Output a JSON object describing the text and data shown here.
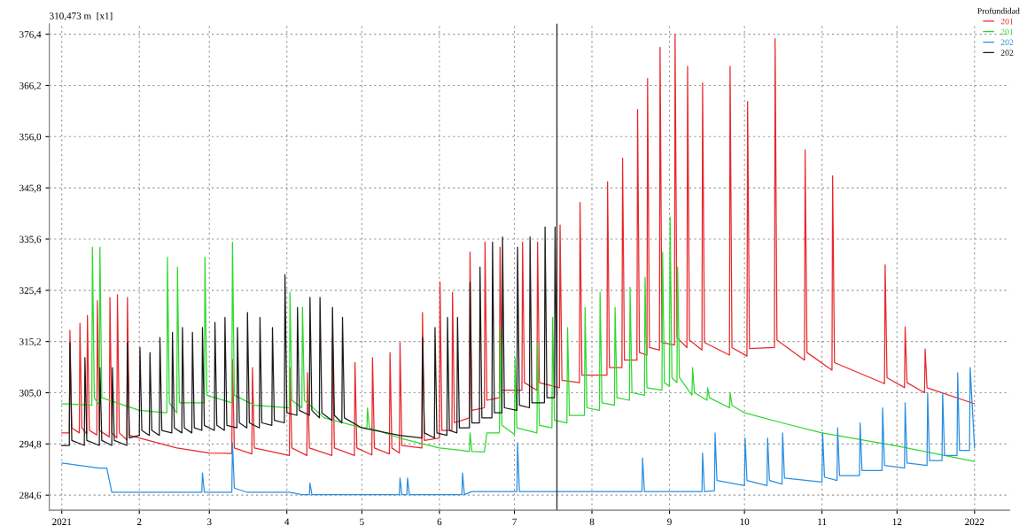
{
  "chart_data": {
    "type": "line",
    "ylabel": "310,473 m  [x1]",
    "legend_title": "Profundidad",
    "legend": "top right",
    "grid": true,
    "line_style": "solid",
    "marker": "none",
    "xlim": [
      "2020-12-27",
      "2022-01-15"
    ],
    "ylim": [
      281.6,
      378.5
    ],
    "xticks": [
      {
        "value": "2021-01-01",
        "label": "2021"
      },
      {
        "value": "2021-02-01",
        "label": "2"
      },
      {
        "value": "2021-03-01",
        "label": "3"
      },
      {
        "value": "2021-04-01",
        "label": "4"
      },
      {
        "value": "2021-05-01",
        "label": "5"
      },
      {
        "value": "2021-06-01",
        "label": "6"
      },
      {
        "value": "2021-07-01",
        "label": "7"
      },
      {
        "value": "2021-08-01",
        "label": "8"
      },
      {
        "value": "2021-09-01",
        "label": "9"
      },
      {
        "value": "2021-10-01",
        "label": "10"
      },
      {
        "value": "2021-11-01",
        "label": "11"
      },
      {
        "value": "2021-12-01",
        "label": "12"
      },
      {
        "value": "2022-01-01",
        "label": "2022"
      }
    ],
    "yticks": [
      {
        "value": 284.6,
        "label": "284,6"
      },
      {
        "value": 294.8,
        "label": "294,8"
      },
      {
        "value": 305.0,
        "label": "305,0"
      },
      {
        "value": 315.2,
        "label": "315,2"
      },
      {
        "value": 325.4,
        "label": "325,4"
      },
      {
        "value": 335.6,
        "label": "335,6"
      },
      {
        "value": 345.8,
        "label": "345,8"
      },
      {
        "value": 356.0,
        "label": "356,0"
      },
      {
        "value": 366.2,
        "label": "366,2"
      },
      {
        "value": 376.4,
        "label": "376,4"
      }
    ],
    "ref_lines": [
      {
        "axis": "x",
        "value": "2021-07-18",
        "color": "#333333"
      }
    ],
    "series": [
      {
        "name": "201",
        "color": "#e8282c",
        "x": [
          "2021-01-01",
          "2021-01-04",
          "2021-01-04T06:00",
          "2021-01-05",
          "2021-01-08",
          "2021-01-08T06:00",
          "2021-01-09",
          "2021-01-11",
          "2021-01-11T06:00",
          "2021-01-12",
          "2021-01-15",
          "2021-01-15T06:00",
          "2021-01-16",
          "2021-01-20",
          "2021-01-20T06:00",
          "2021-01-21",
          "2021-01-23",
          "2021-01-23T06:00",
          "2021-01-24",
          "2021-01-27",
          "2021-01-27T06:00",
          "2021-01-28",
          "2021-02-16",
          "2021-03-01",
          "2021-03-10",
          "2021-03-10T06:00",
          "2021-03-11",
          "2021-03-18",
          "2021-03-18T06:00",
          "2021-03-19",
          "2021-04-02",
          "2021-04-02T06:00",
          "2021-04-03",
          "2021-04-09",
          "2021-04-09T06:00",
          "2021-04-10",
          "2021-04-19",
          "2021-04-19T06:00",
          "2021-04-20",
          "2021-04-28",
          "2021-04-28T06:00",
          "2021-04-29",
          "2021-05-05",
          "2021-05-05T06:00",
          "2021-05-06",
          "2021-05-12",
          "2021-05-12T06:00",
          "2021-05-13",
          "2021-05-16",
          "2021-05-16T06:00",
          "2021-05-17",
          "2021-05-25",
          "2021-05-25T06:00",
          "2021-05-26",
          "2021-06-01",
          "2021-06-01T06:00",
          "2021-06-02",
          "2021-06-06",
          "2021-06-06T06:00",
          "2021-06-07",
          "2021-06-13",
          "2021-06-13T06:00",
          "2021-06-14",
          "2021-06-19",
          "2021-06-19T06:00",
          "2021-06-20",
          "2021-06-25",
          "2021-06-25T06:00",
          "2021-06-26",
          "2021-07-04",
          "2021-07-04T06:00",
          "2021-07-05",
          "2021-07-10",
          "2021-07-10T06:00",
          "2021-07-11",
          "2021-07-19",
          "2021-07-19T06:00",
          "2021-07-20",
          "2021-07-27",
          "2021-07-27T06:00",
          "2021-07-28",
          "2021-08-07",
          "2021-08-07T06:00",
          "2021-08-08",
          "2021-08-13",
          "2021-08-13T06:00",
          "2021-08-14",
          "2021-08-19",
          "2021-08-19T06:00",
          "2021-08-20",
          "2021-08-23",
          "2021-08-23T06:00",
          "2021-08-24",
          "2021-08-28",
          "2021-08-28T06:00",
          "2021-08-29",
          "2021-09-03",
          "2021-09-03T06:00",
          "2021-09-04",
          "2021-09-08",
          "2021-09-08T06:00",
          "2021-09-09",
          "2021-09-14",
          "2021-09-14T06:00",
          "2021-09-15",
          "2021-09-25",
          "2021-09-25T06:00",
          "2021-09-26",
          "2021-10-02",
          "2021-10-02T06:00",
          "2021-10-03",
          "2021-10-13",
          "2021-10-13T06:00",
          "2021-10-14",
          "2021-10-25",
          "2021-10-25T06:00",
          "2021-10-26",
          "2021-11-05",
          "2021-11-05T06:00",
          "2021-11-06",
          "2021-11-26",
          "2021-11-26T06:00",
          "2021-11-27",
          "2021-12-04",
          "2021-12-04T06:00",
          "2021-12-05",
          "2021-12-12",
          "2021-12-12T06:00",
          "2021-12-13",
          "2022-01-01"
        ],
        "values": [
          297,
          297,
          317.4,
          298,
          297,
          318.8,
          298,
          296.8,
          320.4,
          297.5,
          296.6,
          323.3,
          297.5,
          296.2,
          324,
          297,
          296,
          324.5,
          297,
          295.6,
          324,
          296.5,
          294,
          293,
          292.9,
          311.6,
          294,
          292.8,
          310,
          294,
          292.5,
          310,
          294,
          292.5,
          309,
          294,
          292.5,
          316,
          294,
          292.5,
          311,
          294,
          292.6,
          312,
          294,
          292.8,
          313,
          294,
          293,
          315,
          294.5,
          294,
          321,
          295.5,
          296,
          327,
          297.5,
          297.5,
          325,
          299,
          300,
          333,
          301.5,
          302,
          335,
          303.5,
          304,
          334,
          305.5,
          305.5,
          335,
          307,
          305.5,
          335,
          307,
          306,
          338.4,
          307.5,
          307,
          342.9,
          308.5,
          308.5,
          347,
          310,
          310,
          351.7,
          311.5,
          311.5,
          361.4,
          313,
          312.5,
          367.6,
          314,
          313.5,
          373.8,
          315,
          314.5,
          376.4,
          316,
          314,
          370,
          315.5,
          313.5,
          366.7,
          315,
          312.5,
          370,
          314,
          312.3,
          363,
          313.8,
          314,
          375.5,
          315.5,
          311.5,
          353.4,
          313,
          309.5,
          348.2,
          311,
          306.8,
          330.5,
          308,
          306,
          318.1,
          307,
          305,
          313.7,
          306,
          302.8
        ]
      },
      {
        "name": "201",
        "color": "#2fd82f",
        "x": [
          "2021-01-01",
          "2021-01-13",
          "2021-01-13T06:00",
          "2021-01-14",
          "2021-01-16",
          "2021-01-16T06:00",
          "2021-01-17",
          "2021-02-01",
          "2021-02-12",
          "2021-02-12T06:00",
          "2021-02-13",
          "2021-02-16",
          "2021-02-16T06:00",
          "2021-02-17",
          "2021-02-27",
          "2021-02-27T06:00",
          "2021-02-28",
          "2021-03-10",
          "2021-03-10T06:00",
          "2021-03-11",
          "2021-03-19",
          "2021-04-02",
          "2021-04-02T06:00",
          "2021-04-03",
          "2021-04-07",
          "2021-04-07T06:00",
          "2021-04-08",
          "2021-04-16",
          "2021-05-01",
          "2021-05-03",
          "2021-05-03T06:00",
          "2021-05-04",
          "2021-05-16",
          "2021-06-01",
          "2021-06-10",
          "2021-06-13",
          "2021-06-13T06:00",
          "2021-06-14",
          "2021-06-19",
          "2021-06-20",
          "2021-06-25",
          "2021-06-25T06:00",
          "2021-06-26",
          "2021-07-01",
          "2021-07-01T06:00",
          "2021-07-02",
          "2021-07-10",
          "2021-07-10T06:00",
          "2021-07-11",
          "2021-07-16",
          "2021-07-16T06:00",
          "2021-07-17",
          "2021-07-22",
          "2021-07-22T06:00",
          "2021-07-23",
          "2021-07-29",
          "2021-07-29T06:00",
          "2021-07-30",
          "2021-08-04",
          "2021-08-04T06:00",
          "2021-08-05",
          "2021-08-10",
          "2021-08-10T06:00",
          "2021-08-11",
          "2021-08-16",
          "2021-08-16T06:00",
          "2021-08-17",
          "2021-08-22",
          "2021-08-22T06:00",
          "2021-08-23",
          "2021-08-29",
          "2021-08-29T06:00",
          "2021-08-30",
          "2021-09-01",
          "2021-09-01T06:00",
          "2021-09-02",
          "2021-09-04",
          "2021-09-04T06:00",
          "2021-09-05",
          "2021-09-10",
          "2021-09-10T06:00",
          "2021-09-11",
          "2021-09-16",
          "2021-09-16T06:00",
          "2021-09-17",
          "2021-09-25",
          "2021-09-25T06:00",
          "2021-09-26",
          "2021-10-01",
          "2021-10-16",
          "2021-11-01",
          "2021-12-01",
          "2022-01-01"
        ],
        "values": [
          302.8,
          302.5,
          334,
          304,
          302.5,
          334,
          304,
          301.5,
          301,
          332,
          303,
          301,
          330,
          303,
          303,
          332,
          304.5,
          303,
          335,
          304.5,
          302.5,
          302,
          325,
          303.5,
          302,
          322,
          303.5,
          300,
          298,
          298,
          302,
          298,
          296,
          294,
          293.5,
          293.3,
          297,
          293.3,
          293.2,
          297,
          297,
          318,
          298.5,
          296.7,
          312,
          298,
          297,
          315,
          298.5,
          298,
          320,
          299.5,
          299,
          318,
          300.5,
          300.5,
          322,
          302,
          301.5,
          325,
          303,
          302.5,
          322,
          304,
          303.5,
          326,
          305,
          304.5,
          328,
          306,
          305.5,
          333,
          307,
          306.3,
          340,
          308,
          307,
          330,
          308,
          304.5,
          310,
          305,
          303.5,
          306,
          304,
          302,
          305,
          302.5,
          301,
          299,
          297,
          294.4,
          291.3
        ]
      },
      {
        "name": "202",
        "color": "#2a8ee0",
        "x": [
          "2021-01-01",
          "2021-01-16",
          "2021-01-19",
          "2021-01-21",
          "2021-02-26",
          "2021-02-26T06:00",
          "2021-02-27",
          "2021-03-10",
          "2021-03-10T06:00",
          "2021-03-11",
          "2021-03-16",
          "2021-04-02",
          "2021-04-07",
          "2021-04-10",
          "2021-04-10T06:00",
          "2021-04-11",
          "2021-05-16",
          "2021-05-16T06:00",
          "2021-05-17",
          "2021-05-19",
          "2021-05-19T06:00",
          "2021-05-20",
          "2021-06-10",
          "2021-06-10T06:00",
          "2021-06-11",
          "2021-06-14",
          "2021-07-02",
          "2021-07-02T06:00",
          "2021-07-03",
          "2021-08-21",
          "2021-08-21T06:00",
          "2021-08-22",
          "2021-09-14",
          "2021-09-14T06:00",
          "2021-09-15",
          "2021-09-19",
          "2021-09-19T06:00",
          "2021-09-20",
          "2021-10-01",
          "2021-10-01T06:00",
          "2021-10-02",
          "2021-10-10",
          "2021-10-10T06:00",
          "2021-10-11",
          "2021-10-16",
          "2021-10-16T06:00",
          "2021-10-17",
          "2021-11-01",
          "2021-11-01T06:00",
          "2021-11-02",
          "2021-11-07",
          "2021-11-07T06:00",
          "2021-11-08",
          "2021-11-16",
          "2021-11-16T06:00",
          "2021-11-17",
          "2021-11-25",
          "2021-11-25T06:00",
          "2021-11-26",
          "2021-12-04",
          "2021-12-04T06:00",
          "2021-12-05",
          "2021-12-13",
          "2021-12-13T06:00",
          "2021-12-14",
          "2021-12-19",
          "2021-12-19T06:00",
          "2021-12-20",
          "2021-12-25",
          "2021-12-25T06:00",
          "2021-12-26",
          "2021-12-30",
          "2021-12-30T06:00",
          "2022-01-01"
        ],
        "values": [
          291,
          290,
          290,
          285.2,
          285.2,
          289,
          285.2,
          285.2,
          295,
          286,
          285.2,
          285.2,
          284.7,
          284.7,
          287,
          284.7,
          284.7,
          288,
          284.7,
          284.7,
          288,
          284.7,
          284.7,
          289,
          284.7,
          285.3,
          285.3,
          295,
          285.3,
          285.3,
          292,
          285.3,
          285.3,
          293,
          285.3,
          285.5,
          297,
          287.5,
          286.5,
          296,
          287.5,
          286.5,
          296,
          287.5,
          286.8,
          297,
          288,
          287.2,
          297,
          288.2,
          287.5,
          298,
          288.5,
          288.5,
          299,
          289.5,
          289.5,
          302,
          290.5,
          290,
          303,
          291,
          290.5,
          305,
          291.5,
          291.5,
          305,
          292.5,
          292.5,
          309,
          293.5,
          293.5,
          310,
          294
        ]
      },
      {
        "name": "202",
        "color": "#1a1a1a",
        "x": [
          "2021-01-01",
          "2021-01-04",
          "2021-01-04T06:00",
          "2021-01-05",
          "2021-01-10",
          "2021-01-10T06:00",
          "2021-01-11",
          "2021-01-16",
          "2021-01-16T06:00",
          "2021-01-17",
          "2021-01-21",
          "2021-01-21T06:00",
          "2021-01-22",
          "2021-01-27",
          "2021-01-27T06:00",
          "2021-01-28",
          "2021-02-01",
          "2021-02-01T06:00",
          "2021-02-02",
          "2021-02-05",
          "2021-02-05T06:00",
          "2021-02-06",
          "2021-02-09",
          "2021-02-09T06:00",
          "2021-02-10",
          "2021-02-14",
          "2021-02-14T06:00",
          "2021-02-15",
          "2021-02-18",
          "2021-02-18T06:00",
          "2021-02-19",
          "2021-02-22",
          "2021-02-22T06:00",
          "2021-02-23",
          "2021-02-26",
          "2021-02-26T06:00",
          "2021-02-27",
          "2021-03-03",
          "2021-03-03T06:00",
          "2021-03-04",
          "2021-03-07",
          "2021-03-07T06:00",
          "2021-03-08",
          "2021-03-12",
          "2021-03-12T06:00",
          "2021-03-13",
          "2021-03-16",
          "2021-03-16T06:00",
          "2021-03-17",
          "2021-03-21",
          "2021-03-21T06:00",
          "2021-03-22",
          "2021-03-26",
          "2021-03-26T06:00",
          "2021-03-27",
          "2021-03-31",
          "2021-03-31T06:00",
          "2021-04-01",
          "2021-04-05",
          "2021-04-05T06:00",
          "2021-04-06",
          "2021-04-10",
          "2021-04-10T06:00",
          "2021-04-11",
          "2021-04-14",
          "2021-04-14T06:00",
          "2021-04-15",
          "2021-04-19",
          "2021-04-19T06:00",
          "2021-04-20",
          "2021-04-23",
          "2021-04-23T06:00",
          "2021-04-24",
          "2021-05-01",
          "2021-05-16",
          "2021-05-25",
          "2021-05-25T06:00",
          "2021-05-26",
          "2021-05-30",
          "2021-05-30T06:00",
          "2021-05-31",
          "2021-06-04",
          "2021-06-04T06:00",
          "2021-06-05",
          "2021-06-08",
          "2021-06-08T06:00",
          "2021-06-09",
          "2021-06-13",
          "2021-06-13T06:00",
          "2021-06-14",
          "2021-06-17",
          "2021-06-17T06:00",
          "2021-06-18",
          "2021-06-22",
          "2021-06-22T06:00",
          "2021-06-23",
          "2021-06-26",
          "2021-06-26T06:00",
          "2021-06-27",
          "2021-07-02",
          "2021-07-02T06:00",
          "2021-07-03",
          "2021-07-07",
          "2021-07-07T06:00",
          "2021-07-08",
          "2021-07-13",
          "2021-07-13T06:00",
          "2021-07-14",
          "2021-07-17",
          "2021-07-17T06:00",
          "2021-07-18"
        ],
        "values": [
          294.5,
          294.5,
          315,
          295.5,
          294.5,
          312,
          295.5,
          294.5,
          310,
          295.5,
          294.5,
          310,
          295.5,
          294.5,
          315,
          296,
          296.5,
          314,
          297.5,
          296.5,
          313,
          297.5,
          296.5,
          316,
          297.5,
          297,
          317,
          298,
          297,
          318,
          298,
          297,
          317,
          298,
          297.5,
          318,
          298.5,
          297.5,
          319,
          298.5,
          297.5,
          320,
          298.5,
          298,
          318,
          299,
          298,
          321,
          299,
          298,
          320,
          299,
          298.5,
          318,
          299.5,
          299,
          328.5,
          301,
          300.5,
          322,
          301.5,
          300.5,
          324,
          301.5,
          300,
          324,
          301,
          299.5,
          322,
          300.5,
          299,
          320,
          300,
          298,
          296.5,
          296,
          316,
          297,
          296,
          318,
          297,
          296.5,
          320,
          297.5,
          297,
          320,
          298,
          298,
          327,
          299,
          299,
          330,
          300,
          300,
          335,
          301,
          301,
          336,
          302,
          301.5,
          334,
          302.5,
          302,
          336,
          303,
          303,
          338,
          304,
          304,
          338,
          304.5
        ]
      }
    ]
  }
}
